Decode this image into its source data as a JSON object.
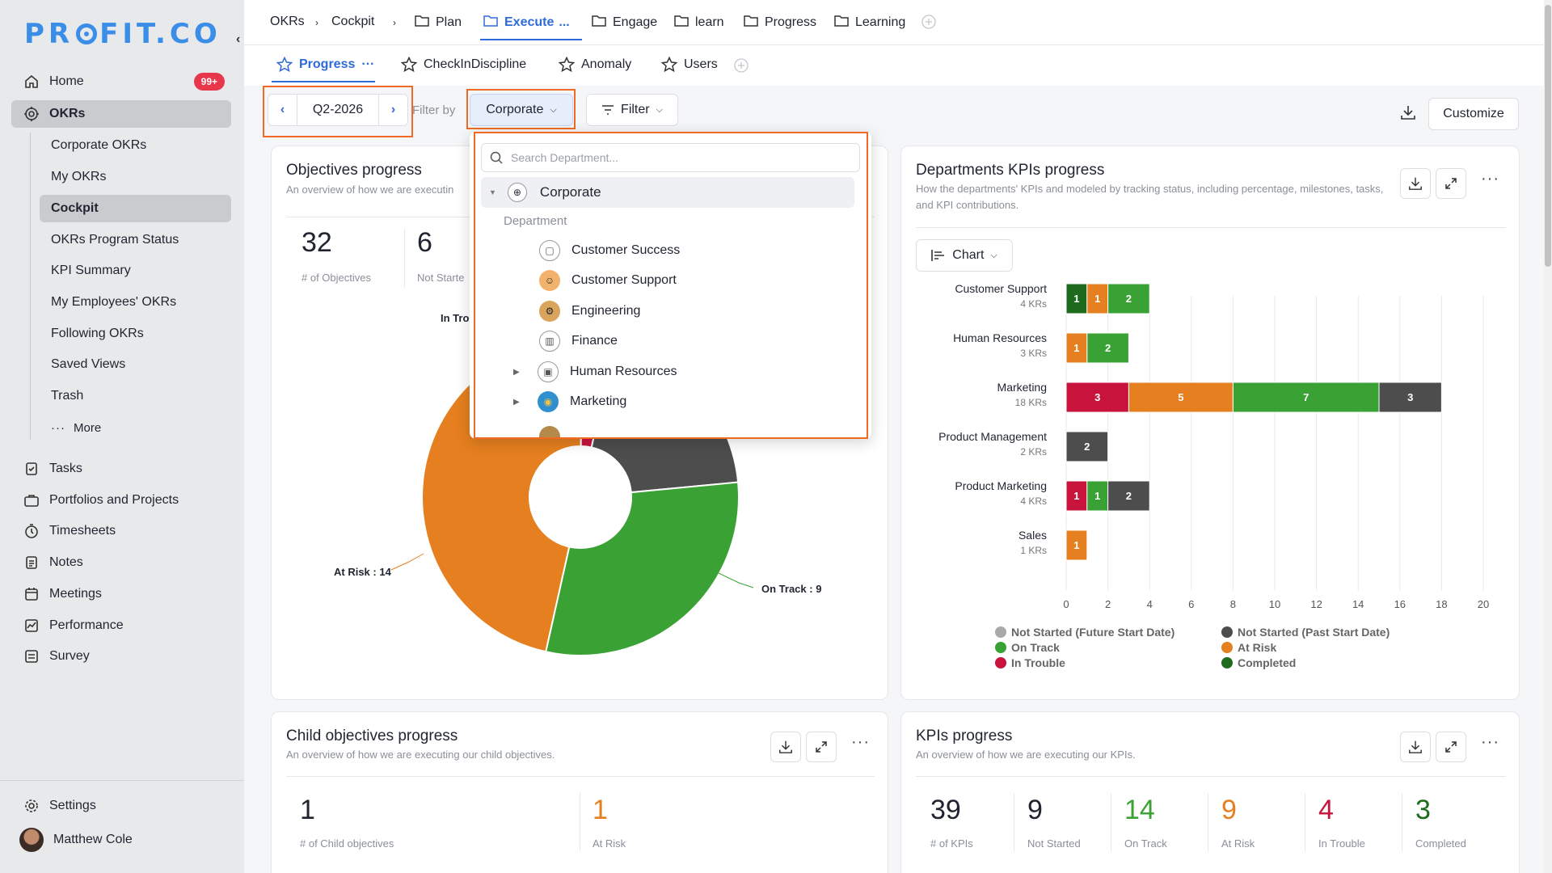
{
  "sidebar": {
    "logo": "PROFIT.CO",
    "nav": [
      {
        "label": "Home",
        "badge": "99+",
        "icon": "home-icon"
      },
      {
        "label": "OKRs",
        "icon": "target-icon"
      }
    ],
    "okr_sub": [
      "Corporate OKRs",
      "My OKRs",
      "Cockpit",
      "OKRs Program Status",
      "KPI Summary",
      "My Employees' OKRs",
      "Following OKRs",
      "Saved Views",
      "Trash",
      "More"
    ],
    "nav2": [
      {
        "label": "Tasks",
        "icon": "tasks-icon"
      },
      {
        "label": "Portfolios and Projects",
        "icon": "briefcase-icon"
      },
      {
        "label": "Timesheets",
        "icon": "timer-icon"
      },
      {
        "label": "Notes",
        "icon": "notes-icon"
      },
      {
        "label": "Meetings",
        "icon": "calendar-icon"
      },
      {
        "label": "Performance",
        "icon": "performance-icon"
      },
      {
        "label": "Survey",
        "icon": "survey-icon"
      }
    ],
    "settings": "Settings",
    "user": "Matthew Cole"
  },
  "breadcrumb": {
    "root": "OKRs",
    "cockpit": "Cockpit",
    "items": [
      "Plan",
      "Execute",
      "Engage",
      "learn",
      "Progress",
      "Learning"
    ],
    "more": "..."
  },
  "tabs": [
    "Progress",
    "CheckInDiscipline",
    "Anomaly",
    "Users"
  ],
  "toolbar": {
    "period": "Q2-2026",
    "filter_by": "Filter by",
    "corporate": "Corporate",
    "filter": "Filter",
    "customize": "Customize"
  },
  "dropdown": {
    "search_placeholder": "Search Department...",
    "root": "Corporate",
    "section": "Department",
    "items": [
      "Customer Success",
      "Customer Support",
      "Engineering",
      "Finance",
      "Human Resources",
      "Marketing"
    ]
  },
  "objectives": {
    "title": "Objectives progress",
    "subtitle": "An overview of how we are executin",
    "count": "32",
    "count_label": "# of Objectives",
    "not_started": "6",
    "not_started_label": "Not Starte",
    "in_trouble_label": "In Tro",
    "at_risk_label": "At Risk : 14",
    "on_track_label": "On Track : 9",
    "chart_data": {
      "type": "pie",
      "slices": [
        {
          "name": "At Risk",
          "value": 14,
          "color": "#e57f1f"
        },
        {
          "name": "In Trouble",
          "value": 1,
          "color": "#c8143c"
        },
        {
          "name": "Not Started",
          "value": 6,
          "color": "#4d4d4d"
        },
        {
          "name": "On Track",
          "value": 9,
          "color": "#3aa234"
        }
      ]
    }
  },
  "departments": {
    "title": "Departments KPIs progress",
    "subtitle": "How the departments' KPIs and modeled by tracking status, including percentage, milestones, tasks, and KPI contributions.",
    "chart_button": "Chart",
    "chart_data": {
      "type": "bar",
      "orientation": "horizontal",
      "stacked": true,
      "categories": [
        "Customer Support",
        "Human Resources",
        "Marketing",
        "Product Management",
        "Product Marketing",
        "Sales"
      ],
      "sublabels": [
        "4 KRs",
        "3 KRs",
        "18 KRs",
        "2 KRs",
        "4 KRs",
        "1 KRs"
      ],
      "series": [
        {
          "name": "Completed",
          "color": "#1e6b1e",
          "values": [
            1,
            0,
            0,
            0,
            0,
            0
          ]
        },
        {
          "name": "In Trouble",
          "color": "#c8143c",
          "values": [
            0,
            0,
            3,
            0,
            1,
            0
          ]
        },
        {
          "name": "At Risk",
          "color": "#e57f1f",
          "values": [
            1,
            1,
            5,
            0,
            0,
            1
          ]
        },
        {
          "name": "On Track",
          "color": "#3aa234",
          "values": [
            2,
            2,
            7,
            0,
            1,
            0
          ]
        },
        {
          "name": "Not Started (Past Start Date)",
          "color": "#4d4d4d",
          "values": [
            0,
            0,
            3,
            2,
            2,
            0
          ]
        }
      ],
      "xlim": [
        0,
        20
      ],
      "xticks": [
        "0",
        "2",
        "4",
        "6",
        "8",
        "10",
        "12",
        "14",
        "16",
        "18",
        "20"
      ],
      "legend": [
        {
          "name": "Not Started (Future Start Date)",
          "color": "#a9a9a9"
        },
        {
          "name": "Not Started (Past Start Date)",
          "color": "#4d4d4d"
        },
        {
          "name": "On Track",
          "color": "#3aa234"
        },
        {
          "name": "At Risk",
          "color": "#e57f1f"
        },
        {
          "name": "In Trouble",
          "color": "#c8143c"
        },
        {
          "name": "Completed",
          "color": "#1e6b1e"
        }
      ]
    }
  },
  "child": {
    "title": "Child objectives progress",
    "subtitle": "An overview of how we are executing our child objectives.",
    "count": "1",
    "count_label": "# of Child objectives",
    "at_risk": "1",
    "at_risk_label": "At Risk"
  },
  "kpis": {
    "title": "KPIs progress",
    "subtitle": "An overview of how we are executing our KPIs.",
    "stats": [
      {
        "value": "39",
        "label": "# of KPIs",
        "color": "#1f2430"
      },
      {
        "value": "9",
        "label": "Not Started",
        "color": "#1f2430"
      },
      {
        "value": "14",
        "label": "On Track",
        "color": "#3aa234"
      },
      {
        "value": "9",
        "label": "At Risk",
        "color": "#e57f1f"
      },
      {
        "value": "4",
        "label": "In Trouble",
        "color": "#c8143c"
      },
      {
        "value": "3",
        "label": "Completed",
        "color": "#1e6b1e"
      }
    ]
  }
}
